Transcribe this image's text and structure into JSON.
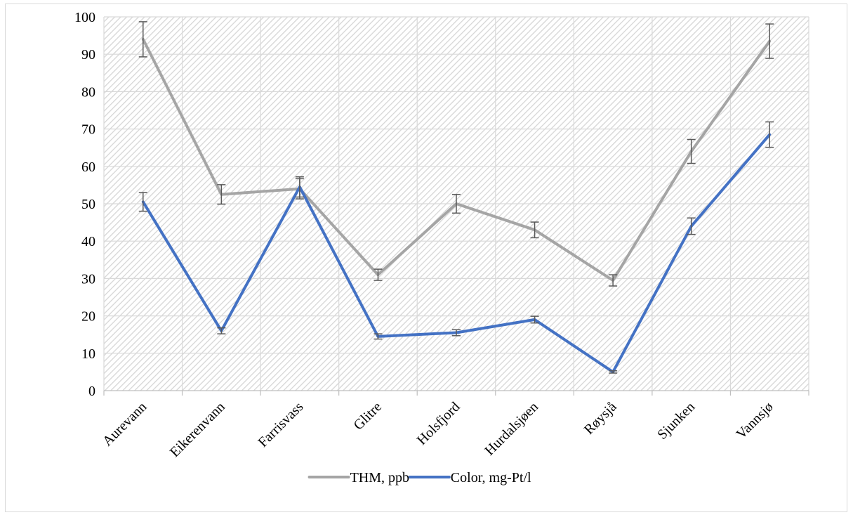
{
  "chart_data": {
    "type": "line",
    "categories": [
      "Aurevann",
      "Eikerenvann",
      "Farrisvass",
      "Glitre",
      "Holsfjord",
      "Hurdalsjøen",
      "Røysjå",
      "Sjunken",
      "Vannsjø"
    ],
    "ylim": [
      0,
      100
    ],
    "yticks": [
      0,
      10,
      20,
      30,
      40,
      50,
      60,
      70,
      80,
      90,
      100
    ],
    "grid": true,
    "legend_position": "bottom",
    "error_bars": true,
    "series": [
      {
        "name": "THM, ppb",
        "color": "#a5a5a5",
        "values": [
          94,
          52.5,
          54,
          31,
          50,
          43,
          29.5,
          64,
          93.5
        ],
        "error": [
          4.7,
          2.6,
          2.7,
          1.5,
          2.5,
          2.1,
          1.5,
          3.2,
          4.6
        ]
      },
      {
        "name": "Color, mg-Pt/l",
        "color": "#4472c4",
        "values": [
          50.5,
          16,
          54.5,
          14.5,
          15.5,
          19,
          5,
          44,
          68.5
        ],
        "error": [
          2.5,
          0.8,
          2.7,
          0.7,
          0.8,
          0.9,
          0.3,
          2.2,
          3.4
        ]
      }
    ]
  }
}
